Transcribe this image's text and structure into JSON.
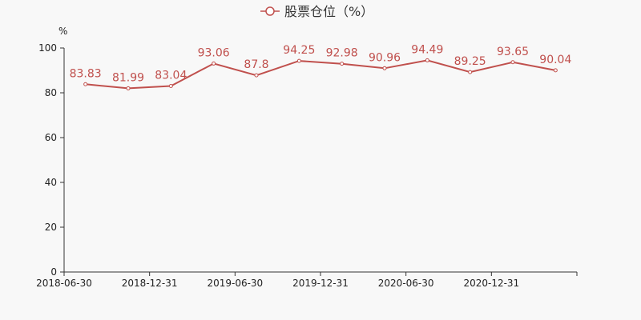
{
  "chart_data": {
    "type": "line",
    "legend": "股票仓位（%）",
    "y_unit": "%",
    "ylim": [
      0,
      100
    ],
    "y_ticks": [
      0,
      20,
      40,
      60,
      80,
      100
    ],
    "x_tick_labels": [
      "2018-06-30",
      "2018-12-31",
      "2019-06-30",
      "2019-12-31",
      "2020-06-30",
      "2020-12-31"
    ],
    "series": [
      {
        "name": "股票仓位（%）",
        "color": "#c0504d",
        "values": [
          83.83,
          81.99,
          83.04,
          93.06,
          87.8,
          94.25,
          92.98,
          90.96,
          94.49,
          89.25,
          93.65,
          90.04
        ],
        "value_labels": [
          "83.83",
          "81.99",
          "83.04",
          "93.06",
          "87.8",
          "94.25",
          "92.98",
          "90.96",
          "94.49",
          "89.25",
          "93.65",
          "90.04"
        ]
      }
    ],
    "grid": false,
    "legend_position": "top-center"
  }
}
